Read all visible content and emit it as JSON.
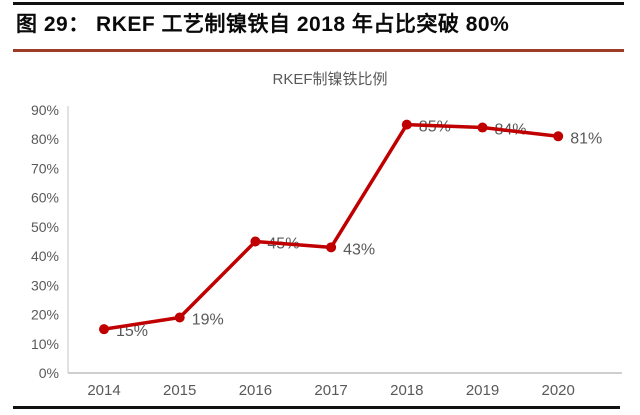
{
  "page": {
    "caption": "图 29： RKEF 工艺制镍铁自 2018 年占比突破 80%"
  },
  "colors": {
    "caption_text": "#0a0a0a",
    "caption_underline_red": "#9e3b25",
    "rule_black": "#111111",
    "line_red": "#c00000",
    "label_gray": "#595959",
    "axis_gray": "#bfbfbf"
  },
  "chart_data": {
    "type": "line",
    "title": "RKEF制镍铁比例",
    "categories": [
      "2014",
      "2015",
      "2016",
      "2017",
      "2018",
      "2019",
      "2020"
    ],
    "values": [
      15,
      19,
      45,
      43,
      85,
      84,
      81
    ],
    "data_labels": [
      "15%",
      "19%",
      "45%",
      "43%",
      "85%",
      "84%",
      "81%"
    ],
    "xlabel": "",
    "ylabel": "",
    "ylim": [
      0,
      90
    ],
    "ytick_step": 10,
    "ytick_labels": [
      "0%",
      "10%",
      "20%",
      "30%",
      "40%",
      "50%",
      "60%",
      "70%",
      "80%",
      "90%"
    ],
    "grid": false,
    "legend": "none",
    "line_color": "#c00000",
    "marker": "circle",
    "label_color": "#595959"
  }
}
